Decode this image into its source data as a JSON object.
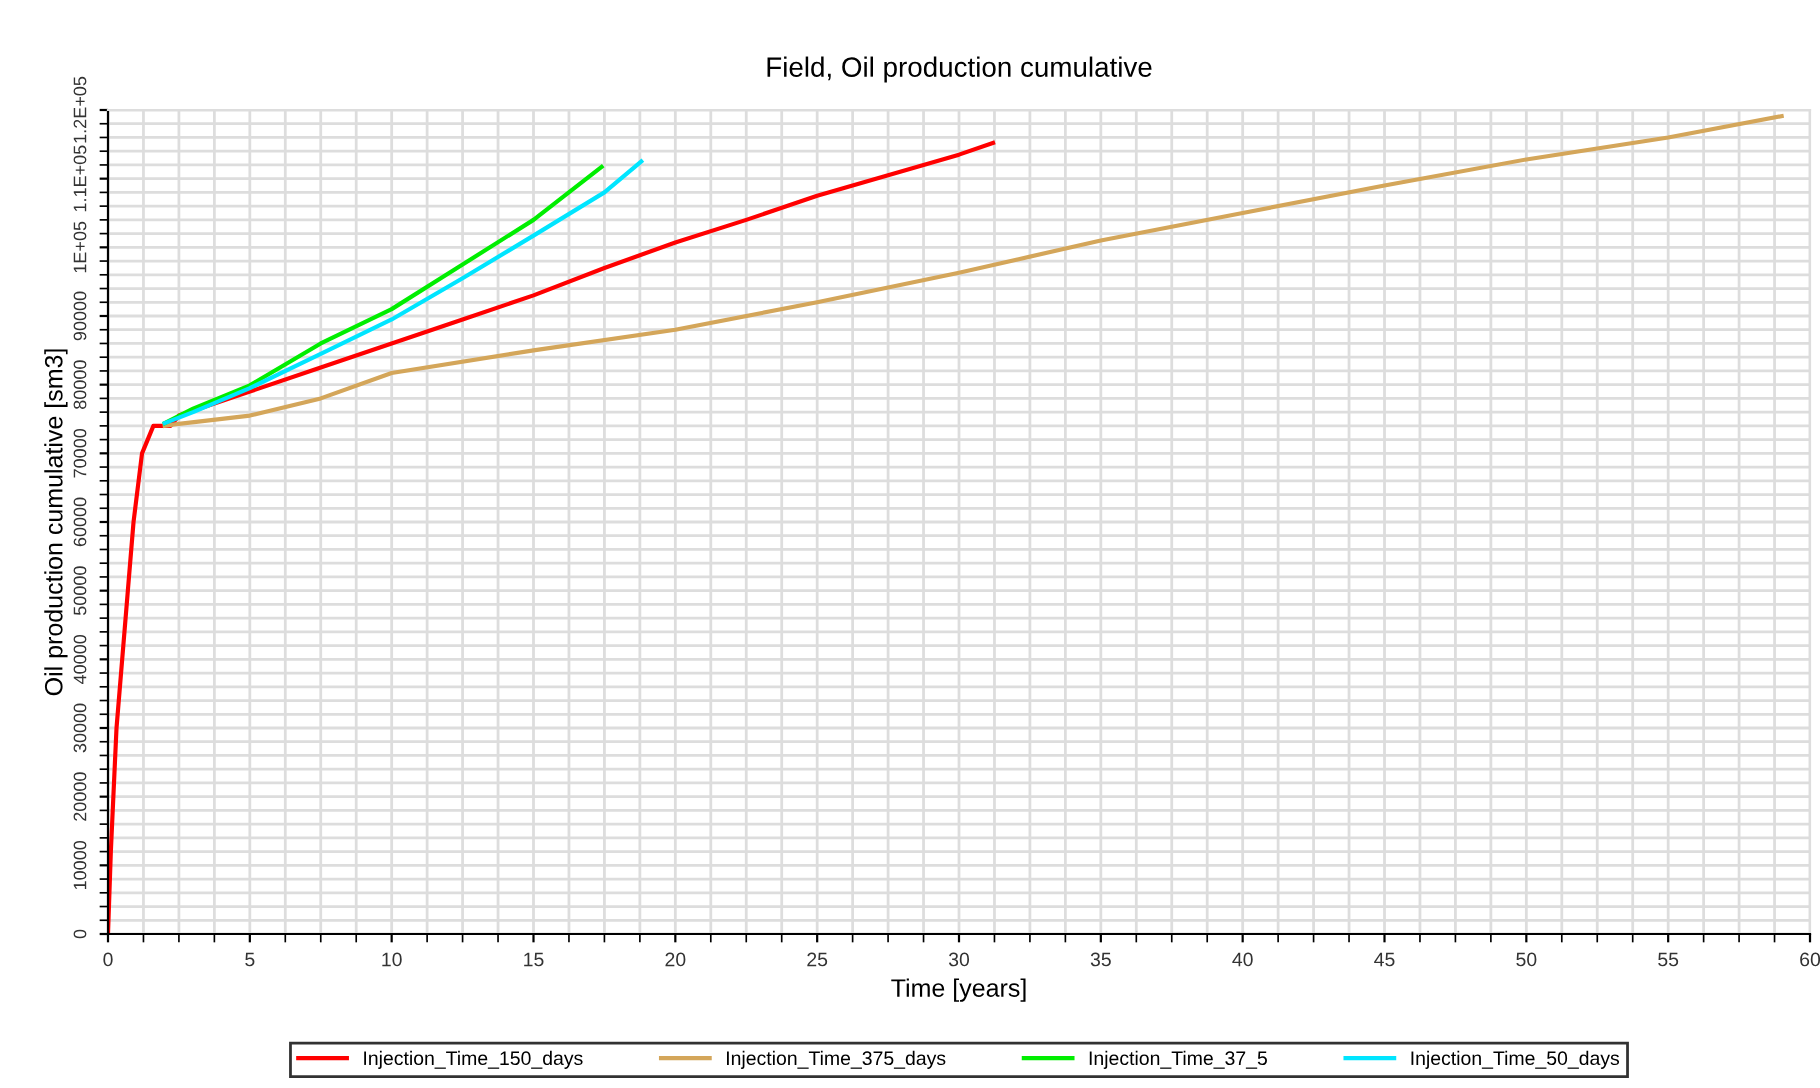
{
  "chart_data": {
    "type": "line",
    "title": "Field, Oil production cumulative",
    "xlabel": "Time [years]",
    "ylabel": "Oil production cumulative [sm3]",
    "xlim": [
      0,
      60
    ],
    "ylim": [
      0,
      120000
    ],
    "xticks": [
      0,
      5,
      10,
      15,
      20,
      25,
      30,
      35,
      40,
      45,
      50,
      55,
      60
    ],
    "yticks": [
      0,
      10000,
      20000,
      30000,
      40000,
      50000,
      60000,
      70000,
      80000,
      90000,
      {
        "value": 100000,
        "label": "1E+05"
      },
      {
        "value": 110000,
        "label": "1.1E+05"
      },
      {
        "value": 120000,
        "label": "1.2E+05"
      }
    ],
    "grid": true,
    "legend": "bottom",
    "marker": "none",
    "line_style": "solid",
    "series": [
      {
        "name": "Injection_Time_150_days",
        "color": "#ff0000",
        "x": [
          0,
          0.1,
          0.3,
          0.5,
          0.7,
          0.9,
          1.2,
          1.6,
          2.2,
          2.5,
          5,
          7.5,
          10,
          12.5,
          15,
          17.5,
          20,
          22.5,
          25,
          27.5,
          30,
          31.2
        ],
        "values": [
          0,
          12000,
          30000,
          40000,
          50000,
          60000,
          70000,
          74000,
          74000,
          75500,
          79000,
          82500,
          86000,
          89500,
          93000,
          97000,
          100700,
          104000,
          107500,
          110500,
          113500,
          115200
        ]
      },
      {
        "name": "Injection_Time_375_days",
        "color": "#d4a65a",
        "x": [
          2,
          2.5,
          5,
          7.5,
          10,
          15,
          20,
          25,
          30,
          35,
          40,
          45,
          50,
          55,
          59
        ],
        "values": [
          74000,
          74300,
          75500,
          78000,
          81700,
          85000,
          88000,
          92000,
          96300,
          101000,
          105000,
          109000,
          112800,
          116000,
          119100
        ]
      },
      {
        "name": "Injection_Time_37_5",
        "color": "#00ee00",
        "x": [
          2,
          3,
          5,
          7.5,
          10,
          12.5,
          15,
          17.4
        ],
        "values": [
          74400,
          76500,
          79900,
          86000,
          91000,
          97500,
          104000,
          111700
        ]
      },
      {
        "name": "Injection_Time_50_days",
        "color": "#00e5ff",
        "x": [
          2,
          3,
          5,
          7.5,
          10,
          12.5,
          15,
          17.5,
          18.8
        ],
        "values": [
          74400,
          76000,
          79500,
          84500,
          89500,
          95500,
          101700,
          108000,
          112500
        ]
      }
    ]
  }
}
